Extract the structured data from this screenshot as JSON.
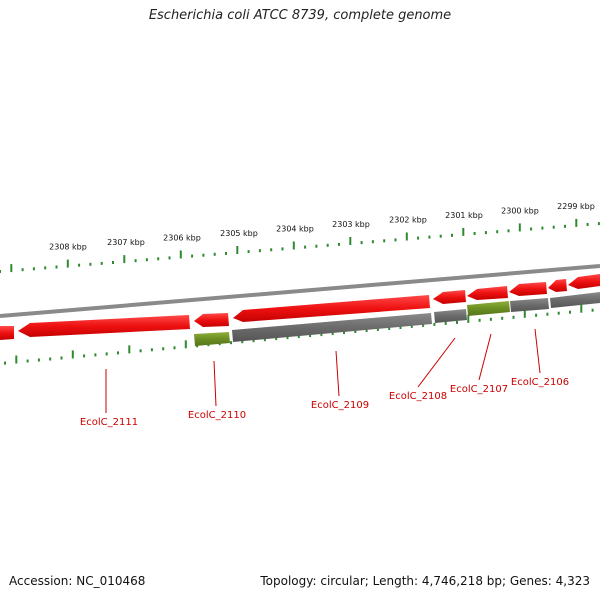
{
  "title": "Escherichia coli ATCC 8739, complete genome",
  "footer": {
    "accession": "Accession: NC_010468",
    "summary": "Topology: circular; Length: 4,746,218 bp; Genes: 4,323"
  },
  "colors": {
    "forward_gene": "#ee1111",
    "cds": "#6b6b6b",
    "rna": "#6b8e23",
    "backbone": "#8a8a8a",
    "tick": "#2f8a2f",
    "label": "#cc0000"
  },
  "scale_ticks": [
    {
      "kbp": 2308,
      "label": "2308 kbp"
    },
    {
      "kbp": 2307,
      "label": "2307 kbp"
    },
    {
      "kbp": 2306,
      "label": "2306 kbp"
    },
    {
      "kbp": 2305,
      "label": "2305 kbp"
    },
    {
      "kbp": 2304,
      "label": "2304 kbp"
    },
    {
      "kbp": 2303,
      "label": "2303 kbp"
    },
    {
      "kbp": 2302,
      "label": "2302 kbp"
    },
    {
      "kbp": 2301,
      "label": "2301 kbp"
    },
    {
      "kbp": 2300,
      "label": "2300 kbp"
    },
    {
      "kbp": 2299,
      "label": "2299 kbp"
    }
  ],
  "gene_labels": [
    {
      "name": "EcolC_2111"
    },
    {
      "name": "EcolC_2110"
    },
    {
      "name": "EcolC_2109"
    },
    {
      "name": "EcolC_2108"
    },
    {
      "name": "EcolC_2107"
    },
    {
      "name": "EcolC_2106"
    }
  ]
}
